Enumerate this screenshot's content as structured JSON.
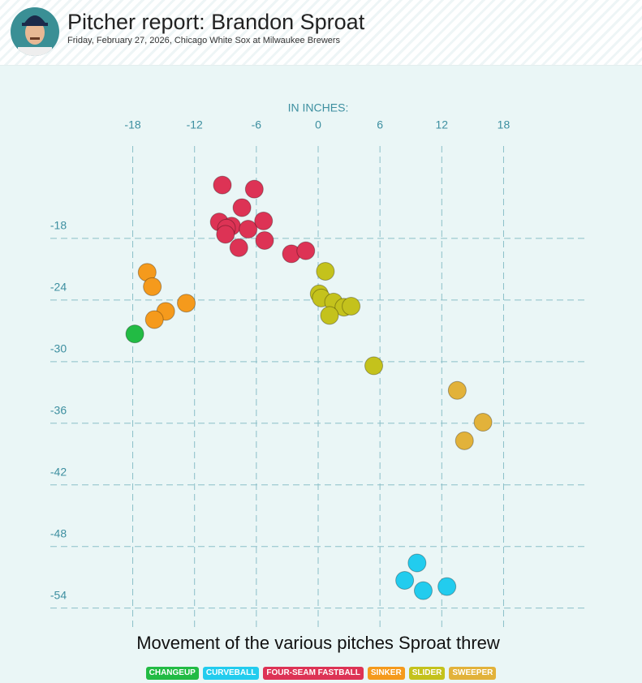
{
  "header": {
    "title": "Pitcher report: Brandon Sproat",
    "subtitle": "Friday, February 27, 2026, Chicago White Sox at Milwaukee Brewers"
  },
  "chart_data": {
    "type": "scatter",
    "title": "Movement of the various pitches Sproat threw",
    "x_label": "IN INCHES:",
    "xlim": [
      -26,
      26
    ],
    "ylim": [
      -56,
      -9
    ],
    "xticks": [
      -18,
      -12,
      -6,
      0,
      6,
      12,
      18
    ],
    "yticks": [
      -18,
      -24,
      -30,
      -36,
      -42,
      -48,
      -54
    ],
    "grid": true,
    "series": [
      {
        "name": "CHANGEUP",
        "color": "#22bb44",
        "x": [
          -17.8
        ],
        "values": [
          -27.3
        ]
      },
      {
        "name": "CURVEBALL",
        "color": "#22ccee",
        "x": [
          9.6,
          8.4,
          10.2,
          12.5
        ],
        "values": [
          -49.6,
          -51.3,
          -52.3,
          -51.9
        ]
      },
      {
        "name": "FOUR-SEAM FASTBALL",
        "color": "#dd3355",
        "x": [
          -9.3,
          -6.2,
          -7.4,
          -9.6,
          -8.4,
          -8.9,
          -9.0,
          -6.8,
          -5.3,
          -7.7,
          -5.2,
          -2.6,
          -1.2
        ],
        "values": [
          -12.8,
          -13.2,
          -15.0,
          -16.4,
          -16.8,
          -17.0,
          -17.6,
          -17.1,
          -16.3,
          -18.9,
          -18.2,
          -19.5,
          -19.2
        ]
      },
      {
        "name": "SINKER",
        "color": "#f59a1c",
        "x": [
          -16.6,
          -16.1,
          -12.8,
          -14.8,
          -15.9
        ],
        "values": [
          -21.3,
          -22.7,
          -24.3,
          -25.1,
          -25.9
        ]
      },
      {
        "name": "SLIDER",
        "color": "#c4c21c",
        "x": [
          0.7,
          0.1,
          0.3,
          1.5,
          2.5,
          3.2,
          1.1,
          5.4
        ],
        "values": [
          -21.2,
          -23.4,
          -23.8,
          -24.2,
          -24.7,
          -24.6,
          -25.5,
          -30.4
        ]
      },
      {
        "name": "SWEEPER",
        "color": "#e2b23a",
        "x": [
          13.5,
          16.0,
          14.2
        ],
        "values": [
          -32.8,
          -35.9,
          -37.7
        ]
      }
    ]
  }
}
